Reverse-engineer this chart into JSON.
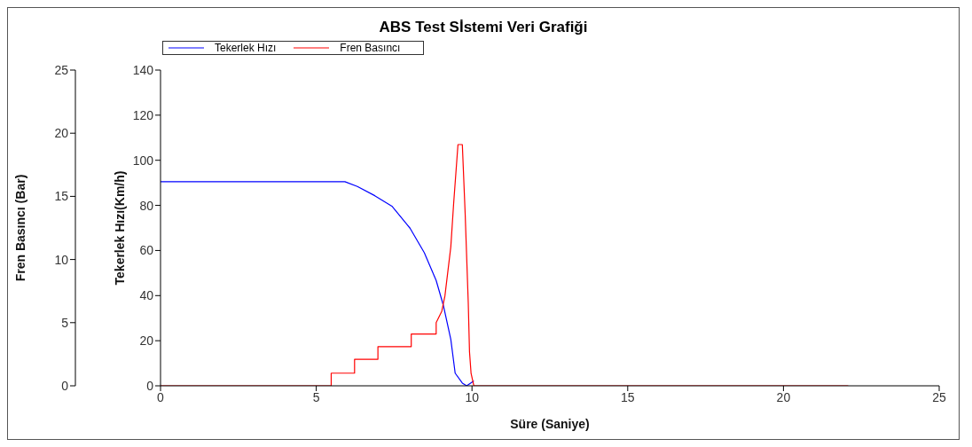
{
  "chart_data": {
    "type": "line",
    "title": "ABS Test Sİstemi Veri Grafiği",
    "xlabel": "Süre (Saniye)",
    "ylabel": "Tekerlek Hızı(Km/h)",
    "y2label": "Fren Basıncı (Bar)",
    "xlim": [
      0,
      25
    ],
    "xticks": [
      0,
      5,
      10,
      15,
      20,
      25
    ],
    "ylim": [
      0,
      140
    ],
    "yticks": [
      0,
      20,
      40,
      60,
      80,
      100,
      120,
      140
    ],
    "y2lim": [
      0,
      25
    ],
    "y2ticks": [
      0,
      5,
      10,
      15,
      20,
      25
    ],
    "grid": false,
    "legend": "top left",
    "marker": "none",
    "line_style": "solid",
    "series": [
      {
        "name": "Tekerlek Hızı",
        "color": "#0000ff",
        "x": [
          0,
          5.92,
          6.32,
          6.88,
          7.44,
          8.01,
          8.47,
          8.85,
          9.08,
          9.32,
          9.46,
          9.69,
          9.83,
          10.06
        ],
        "values": [
          90.5,
          90.5,
          88.4,
          84.3,
          79.5,
          69.9,
          59,
          46.7,
          35.7,
          20.6,
          5.6,
          1.2,
          0,
          2.2
        ]
      },
      {
        "name": "Fren Basıncı",
        "color": "#ff0000",
        "axis": "y2",
        "x": [
          0,
          5.48,
          5.48,
          6.23,
          6.23,
          6.98,
          6.98,
          8.05,
          8.05,
          8.85,
          8.85,
          9.03,
          9.13,
          9.32,
          9.41,
          9.55,
          9.69,
          9.78,
          9.88,
          9.92,
          9.97,
          10.06,
          22.08
        ],
        "values": [
          0,
          0,
          1,
          1,
          2.1,
          2.1,
          3.1,
          3.1,
          4.1,
          4.1,
          5,
          5.9,
          7.1,
          11,
          14.4,
          19.1,
          19.1,
          13.7,
          6.6,
          2.7,
          1,
          0,
          0
        ]
      }
    ]
  }
}
